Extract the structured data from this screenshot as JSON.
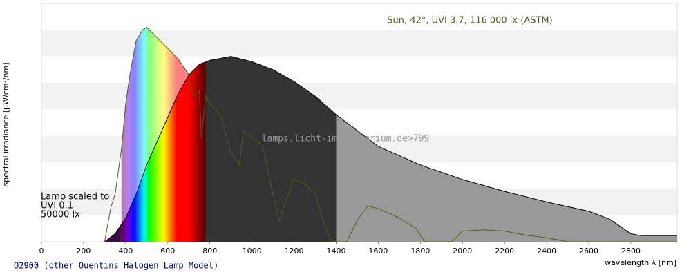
{
  "chart_data": {
    "type": "area",
    "footer": "Q2900 (other Quentins Halogen Lamp Model)",
    "xlabel": "wavelength λ [nm]",
    "ylabel": "spectral irradiance [µW/cm²/nm]",
    "watermark": "lamps.licht-im-terrarium.de>799",
    "annotation_lines": [
      "Lamp scaled to",
      "UVI 0.1",
      "50000 lx"
    ],
    "xlim": [
      0,
      3020
    ],
    "xticks": [
      0,
      200,
      400,
      600,
      800,
      1000,
      1200,
      1400,
      1600,
      1800,
      2000,
      2200,
      2400,
      2600,
      2800
    ],
    "ylim": [
      0,
      9
    ],
    "grid": true,
    "series": [
      {
        "color": "#000000",
        "x": [
          300,
          350,
          400,
          450,
          500,
          550,
          600,
          650,
          700,
          750,
          800,
          900,
          1000,
          1100,
          1200,
          1300,
          1400,
          1600,
          1800,
          2000,
          2200,
          2400,
          2600,
          2700,
          2800,
          2850,
          3020
        ],
        "values": [
          0,
          0.3,
          0.9,
          1.8,
          2.9,
          3.8,
          4.7,
          5.6,
          6.3,
          6.7,
          6.85,
          7.0,
          6.8,
          6.5,
          6.05,
          5.5,
          4.8,
          3.6,
          2.9,
          2.35,
          1.9,
          1.5,
          1.15,
          0.85,
          0.3,
          0.23,
          0.23
        ]
      },
      {
        "name": "Sun, 42°, UVI 3.7, 116 000 lx (ASTM)",
        "color": "#4d5f1e",
        "x": [
          300,
          330,
          350,
          380,
          400,
          420,
          450,
          480,
          500,
          550,
          600,
          650,
          700,
          720,
          750,
          760,
          780,
          800,
          850,
          900,
          940,
          960,
          1000,
          1050,
          1100,
          1130,
          1150,
          1200,
          1250,
          1300,
          1350,
          1380,
          1450,
          1500,
          1550,
          1600,
          1700,
          1780,
          1820,
          1950,
          2000,
          2100,
          2200,
          2300,
          2400,
          2500,
          3020
        ],
        "values": [
          0,
          1.3,
          1.8,
          3.5,
          5.2,
          6.3,
          7.6,
          8.0,
          8.1,
          7.7,
          7.3,
          6.9,
          6.3,
          5.5,
          5.7,
          3.9,
          5.5,
          5.2,
          4.8,
          3.4,
          2.9,
          4.2,
          3.9,
          3.65,
          1.8,
          0.8,
          1.3,
          2.35,
          2.2,
          1.8,
          0.5,
          0,
          0,
          0.8,
          1.35,
          1.25,
          0.9,
          0.5,
          0,
          0,
          0.4,
          0.45,
          0.4,
          0.25,
          0.15,
          0,
          0
        ]
      }
    ]
  }
}
